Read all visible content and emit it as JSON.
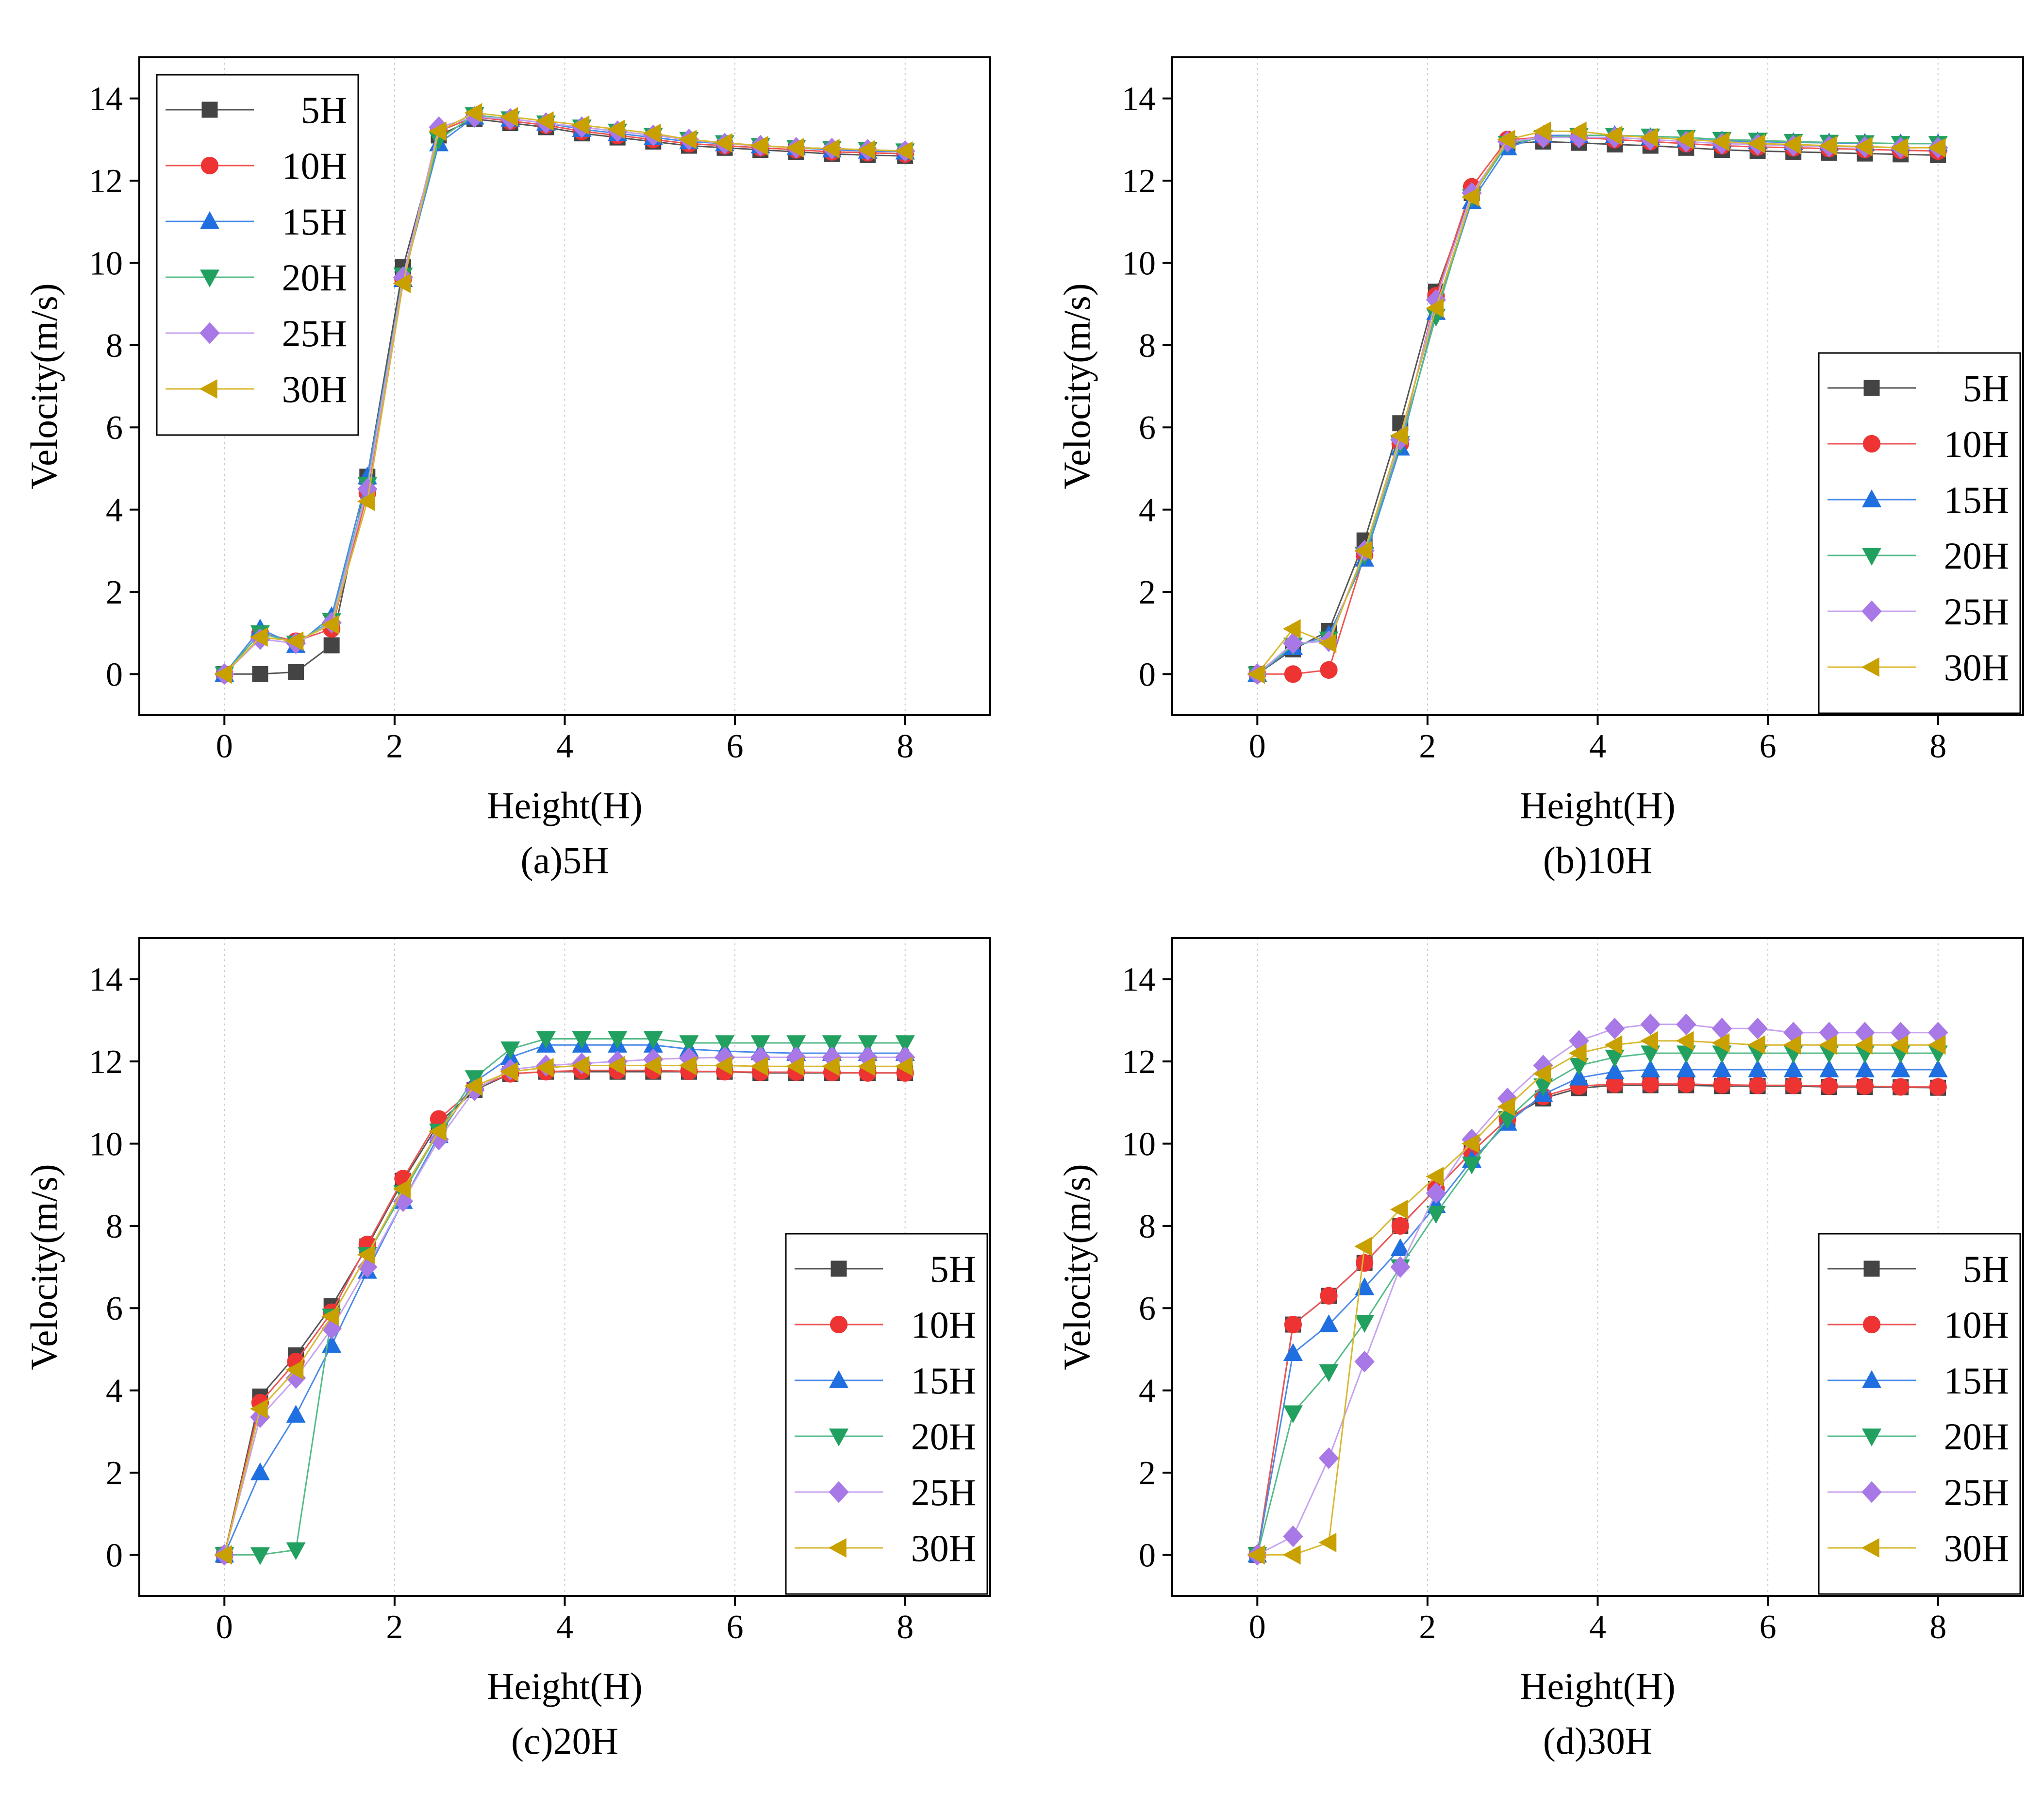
{
  "series_styles": [
    {
      "name": "5H",
      "color": "#444444",
      "line_color": "#555555",
      "marker": "square"
    },
    {
      "name": "10H",
      "color": "#ee3333",
      "line_color": "#ee5555",
      "marker": "circle"
    },
    {
      "name": "15H",
      "color": "#1f6fe0",
      "line_color": "#4a8ae8",
      "marker": "triangle-up"
    },
    {
      "name": "20H",
      "color": "#22a060",
      "line_color": "#55bb88",
      "marker": "triangle-down"
    },
    {
      "name": "25H",
      "color": "#a878e6",
      "line_color": "#c6a2ef",
      "marker": "diamond"
    },
    {
      "name": "30H",
      "color": "#c8a000",
      "line_color": "#d8b830",
      "marker": "triangle-left"
    }
  ],
  "chart_data": [
    {
      "type": "line",
      "caption": "(a)5H",
      "xlabel": "Height(H)",
      "ylabel": "Velocity(m/s)",
      "xlim": [
        -1,
        9
      ],
      "ylim": [
        -1,
        15
      ],
      "xticks": [
        0,
        2,
        4,
        6,
        8
      ],
      "yticks": [
        0,
        2,
        4,
        6,
        8,
        10,
        12,
        14
      ],
      "legend_position": "top-left",
      "x": [
        0,
        0.42,
        0.84,
        1.26,
        1.68,
        2.1,
        2.52,
        2.94,
        3.36,
        3.78,
        4.2,
        4.62,
        5.04,
        5.46,
        5.88,
        6.3,
        6.72,
        7.14,
        7.56,
        8.0
      ],
      "series": [
        {
          "name": "5H",
          "values": [
            0,
            0,
            0.05,
            0.7,
            4.8,
            9.9,
            13.1,
            13.5,
            13.4,
            13.3,
            13.15,
            13.05,
            12.95,
            12.85,
            12.8,
            12.75,
            12.7,
            12.65,
            12.62,
            12.6
          ]
        },
        {
          "name": "10H",
          "values": [
            0,
            1.0,
            0.8,
            1.1,
            4.4,
            9.6,
            13.2,
            13.55,
            13.45,
            13.35,
            13.2,
            13.1,
            13.0,
            12.9,
            12.85,
            12.8,
            12.75,
            12.7,
            12.68,
            12.65
          ]
        },
        {
          "name": "15H",
          "values": [
            0,
            1.1,
            0.7,
            1.4,
            4.8,
            9.6,
            12.9,
            13.55,
            13.5,
            13.4,
            13.25,
            13.15,
            13.05,
            12.95,
            12.9,
            12.85,
            12.8,
            12.75,
            12.72,
            12.7
          ]
        },
        {
          "name": "20H",
          "values": [
            0,
            1.0,
            0.75,
            1.3,
            4.6,
            9.7,
            13.0,
            13.6,
            13.5,
            13.4,
            13.3,
            13.2,
            13.1,
            13.0,
            12.92,
            12.85,
            12.8,
            12.78,
            12.75,
            12.72
          ]
        },
        {
          "name": "25H",
          "values": [
            0,
            0.85,
            0.75,
            1.25,
            4.5,
            9.65,
            13.3,
            13.55,
            13.5,
            13.4,
            13.3,
            13.2,
            13.1,
            13.0,
            12.9,
            12.85,
            12.8,
            12.78,
            12.75,
            12.72
          ]
        },
        {
          "name": "30H",
          "values": [
            0,
            0.9,
            0.8,
            1.2,
            4.2,
            9.5,
            13.2,
            13.65,
            13.55,
            13.45,
            13.35,
            13.25,
            13.15,
            13.0,
            12.92,
            12.85,
            12.8,
            12.78,
            12.75,
            12.72
          ]
        }
      ]
    },
    {
      "type": "line",
      "caption": "(b)10H",
      "xlabel": "Height(H)",
      "ylabel": "Velocity(m/s)",
      "xlim": [
        -1,
        9
      ],
      "ylim": [
        -1,
        15
      ],
      "xticks": [
        0,
        2,
        4,
        6,
        8
      ],
      "yticks": [
        0,
        2,
        4,
        6,
        8,
        10,
        12,
        14
      ],
      "legend_position": "bottom-right",
      "x": [
        0,
        0.42,
        0.84,
        1.26,
        1.68,
        2.1,
        2.52,
        2.94,
        3.36,
        3.78,
        4.2,
        4.62,
        5.04,
        5.46,
        5.88,
        6.3,
        6.72,
        7.14,
        7.56,
        8.0
      ],
      "series": [
        {
          "name": "5H",
          "values": [
            0,
            0.6,
            1.05,
            3.25,
            6.1,
            9.3,
            11.7,
            12.9,
            12.95,
            12.92,
            12.88,
            12.85,
            12.8,
            12.75,
            12.72,
            12.7,
            12.68,
            12.66,
            12.64,
            12.62
          ]
        },
        {
          "name": "10H",
          "values": [
            0,
            0,
            0.1,
            2.9,
            5.6,
            9.2,
            11.85,
            13.0,
            13.05,
            13.05,
            13.0,
            12.95,
            12.9,
            12.85,
            12.82,
            12.8,
            12.78,
            12.76,
            12.74,
            12.72
          ]
        },
        {
          "name": "15H",
          "values": [
            0,
            0.65,
            0.95,
            2.8,
            5.5,
            8.8,
            11.5,
            12.8,
            13.1,
            13.1,
            13.1,
            13.05,
            13.0,
            12.97,
            12.95,
            12.93,
            12.92,
            12.91,
            12.9,
            12.9
          ]
        },
        {
          "name": "20H",
          "values": [
            0,
            0.7,
            0.85,
            2.9,
            5.6,
            8.7,
            11.6,
            12.9,
            13.05,
            13.1,
            13.1,
            13.08,
            13.05,
            13.0,
            12.98,
            12.95,
            12.93,
            12.92,
            12.9,
            12.9
          ]
        },
        {
          "name": "25H",
          "values": [
            0,
            0.75,
            0.8,
            3.0,
            5.7,
            9.1,
            11.7,
            12.95,
            13.05,
            13.05,
            13.05,
            13.0,
            12.95,
            12.9,
            12.88,
            12.85,
            12.83,
            12.82,
            12.8,
            12.8
          ]
        },
        {
          "name": "30H",
          "values": [
            0,
            1.1,
            0.75,
            3.0,
            5.8,
            8.9,
            11.6,
            13.0,
            13.2,
            13.2,
            13.1,
            13.05,
            13.0,
            12.95,
            12.9,
            12.88,
            12.85,
            12.83,
            12.8,
            12.8
          ]
        }
      ]
    },
    {
      "type": "line",
      "caption": "(c)20H",
      "xlabel": "Height(H)",
      "ylabel": "Velocity(m/s)",
      "xlim": [
        -1,
        9
      ],
      "ylim": [
        -1,
        15
      ],
      "xticks": [
        0,
        2,
        4,
        6,
        8
      ],
      "yticks": [
        0,
        2,
        4,
        6,
        8,
        10,
        12,
        14
      ],
      "legend_position": "bottom-right",
      "x": [
        0,
        0.42,
        0.84,
        1.26,
        1.68,
        2.1,
        2.52,
        2.94,
        3.36,
        3.78,
        4.2,
        4.62,
        5.04,
        5.46,
        5.88,
        6.3,
        6.72,
        7.14,
        7.56,
        8.0
      ],
      "series": [
        {
          "name": "5H",
          "values": [
            0,
            3.85,
            4.85,
            6.05,
            7.5,
            9.1,
            10.5,
            11.3,
            11.7,
            11.75,
            11.75,
            11.75,
            11.75,
            11.75,
            11.75,
            11.72,
            11.72,
            11.72,
            11.72,
            11.72
          ]
        },
        {
          "name": "10H",
          "values": [
            0,
            3.7,
            4.7,
            5.9,
            7.55,
            9.15,
            10.6,
            11.35,
            11.7,
            11.75,
            11.78,
            11.78,
            11.78,
            11.76,
            11.75,
            11.74,
            11.74,
            11.73,
            11.72,
            11.72
          ]
        },
        {
          "name": "15H",
          "values": [
            0,
            2.0,
            3.4,
            5.1,
            6.9,
            8.6,
            10.2,
            11.5,
            12.1,
            12.4,
            12.4,
            12.4,
            12.4,
            12.3,
            12.25,
            12.22,
            12.2,
            12.2,
            12.2,
            12.2
          ]
        },
        {
          "name": "20H",
          "values": [
            0,
            0,
            0.12,
            5.8,
            7.3,
            8.8,
            10.3,
            11.6,
            12.3,
            12.55,
            12.55,
            12.55,
            12.55,
            12.45,
            12.45,
            12.45,
            12.45,
            12.45,
            12.45,
            12.45
          ]
        },
        {
          "name": "25H",
          "values": [
            0,
            3.35,
            4.3,
            5.5,
            7.0,
            8.6,
            10.1,
            11.3,
            11.8,
            11.9,
            11.95,
            12.0,
            12.05,
            12.08,
            12.1,
            12.1,
            12.1,
            12.1,
            12.1,
            12.1
          ]
        },
        {
          "name": "30H",
          "values": [
            0,
            3.55,
            4.5,
            5.8,
            7.3,
            8.9,
            10.3,
            11.4,
            11.75,
            11.85,
            11.9,
            11.9,
            11.9,
            11.9,
            11.9,
            11.88,
            11.88,
            11.88,
            11.88,
            11.88
          ]
        }
      ]
    },
    {
      "type": "line",
      "caption": "(d)30H",
      "xlabel": "Height(H)",
      "ylabel": "Velocity(m/s)",
      "xlim": [
        -1,
        9
      ],
      "ylim": [
        -1,
        15
      ],
      "xticks": [
        0,
        2,
        4,
        6,
        8
      ],
      "yticks": [
        0,
        2,
        4,
        6,
        8,
        10,
        12,
        14
      ],
      "legend_position": "bottom-right",
      "x": [
        0,
        0.42,
        0.84,
        1.26,
        1.68,
        2.1,
        2.52,
        2.94,
        3.36,
        3.78,
        4.2,
        4.62,
        5.04,
        5.46,
        5.88,
        6.3,
        6.72,
        7.14,
        7.56,
        8.0
      ],
      "series": [
        {
          "name": "5H",
          "values": [
            0,
            5.6,
            6.3,
            7.1,
            8.0,
            8.9,
            9.8,
            10.6,
            11.1,
            11.35,
            11.42,
            11.42,
            11.42,
            11.4,
            11.4,
            11.4,
            11.38,
            11.38,
            11.37,
            11.36
          ]
        },
        {
          "name": "10H",
          "values": [
            0,
            5.6,
            6.3,
            7.1,
            8.0,
            8.9,
            9.8,
            10.6,
            11.15,
            11.4,
            11.45,
            11.45,
            11.45,
            11.43,
            11.42,
            11.42,
            11.4,
            11.4,
            11.38,
            11.38
          ]
        },
        {
          "name": "15H",
          "values": [
            0,
            4.9,
            5.6,
            6.5,
            7.45,
            8.5,
            9.6,
            10.5,
            11.2,
            11.6,
            11.75,
            11.8,
            11.8,
            11.8,
            11.8,
            11.8,
            11.8,
            11.8,
            11.8,
            11.8
          ]
        },
        {
          "name": "20H",
          "values": [
            0,
            3.45,
            4.45,
            5.65,
            7.0,
            8.3,
            9.5,
            10.6,
            11.4,
            11.9,
            12.1,
            12.2,
            12.2,
            12.2,
            12.2,
            12.2,
            12.2,
            12.2,
            12.2,
            12.2
          ]
        },
        {
          "name": "25H",
          "values": [
            0,
            0.45,
            2.35,
            4.7,
            7.0,
            8.8,
            10.1,
            11.1,
            11.9,
            12.5,
            12.8,
            12.9,
            12.9,
            12.8,
            12.8,
            12.7,
            12.7,
            12.7,
            12.7,
            12.7
          ]
        },
        {
          "name": "30H",
          "values": [
            0,
            0,
            0.3,
            7.5,
            8.4,
            9.2,
            10.0,
            10.9,
            11.7,
            12.2,
            12.4,
            12.5,
            12.5,
            12.45,
            12.4,
            12.4,
            12.4,
            12.4,
            12.4,
            12.4
          ]
        }
      ]
    }
  ]
}
